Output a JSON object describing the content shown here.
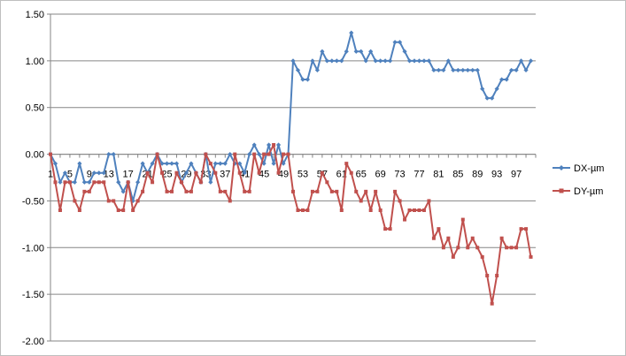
{
  "chart_data": {
    "type": "line",
    "title": "",
    "xlabel": "",
    "ylabel": "",
    "ylim": [
      -2.0,
      1.5
    ],
    "ytick_step": 0.5,
    "x_tick_labels": [
      "1",
      "5",
      "9",
      "13",
      "17",
      "21",
      "25",
      "29",
      "33",
      "37",
      "41",
      "45",
      "49",
      "53",
      "57",
      "61",
      "65",
      "69",
      "73",
      "77",
      "81",
      "85",
      "89",
      "93",
      "97"
    ],
    "grid": "horizontal",
    "legend_position": "right",
    "x": [
      1,
      2,
      3,
      4,
      5,
      6,
      7,
      8,
      9,
      10,
      11,
      12,
      13,
      14,
      15,
      16,
      17,
      18,
      19,
      20,
      21,
      22,
      23,
      24,
      25,
      26,
      27,
      28,
      29,
      30,
      31,
      32,
      33,
      34,
      35,
      36,
      37,
      38,
      39,
      40,
      41,
      42,
      43,
      44,
      45,
      46,
      47,
      48,
      49,
      50,
      51,
      52,
      53,
      54,
      55,
      56,
      57,
      58,
      59,
      60,
      61,
      62,
      63,
      64,
      65,
      66,
      67,
      68,
      69,
      70,
      71,
      72,
      73,
      74,
      75,
      76,
      77,
      78,
      79,
      80,
      81,
      82,
      83,
      84,
      85,
      86,
      87,
      88,
      89,
      90,
      91,
      92,
      93,
      94,
      95,
      96,
      97,
      98,
      99,
      100
    ],
    "series": [
      {
        "name": "DX-µm",
        "color": "#4F81BD",
        "marker": "diamond",
        "values": [
          0,
          -0.1,
          -0.3,
          -0.2,
          -0.3,
          -0.3,
          -0.1,
          -0.3,
          -0.3,
          -0.2,
          -0.2,
          -0.2,
          0,
          0,
          -0.3,
          -0.4,
          -0.3,
          -0.5,
          -0.3,
          -0.1,
          -0.2,
          -0.1,
          0,
          -0.1,
          -0.1,
          -0.1,
          -0.1,
          -0.3,
          -0.2,
          -0.1,
          -0.2,
          -0.3,
          0,
          -0.3,
          -0.1,
          -0.1,
          -0.1,
          0,
          -0.1,
          -0.1,
          -0.2,
          0,
          0.1,
          0,
          -0.1,
          0.1,
          -0.1,
          0.1,
          -0.1,
          0,
          1.0,
          0.9,
          0.8,
          0.8,
          1.0,
          0.9,
          1.1,
          1.0,
          1.0,
          1.0,
          1.0,
          1.1,
          1.3,
          1.1,
          1.1,
          1.0,
          1.1,
          1.0,
          1.0,
          1.0,
          1.0,
          1.2,
          1.2,
          1.1,
          1.0,
          1.0,
          1.0,
          1.0,
          1.0,
          0.9,
          0.9,
          0.9,
          1.0,
          0.9,
          0.9,
          0.9,
          0.9,
          0.9,
          0.9,
          0.7,
          0.6,
          0.6,
          0.7,
          0.8,
          0.8,
          0.9,
          0.9,
          1.0,
          0.9,
          1.0
        ]
      },
      {
        "name": "DY-µm",
        "color": "#C0504D",
        "marker": "square",
        "values": [
          0,
          -0.3,
          -0.6,
          -0.3,
          -0.3,
          -0.5,
          -0.6,
          -0.4,
          -0.4,
          -0.3,
          -0.3,
          -0.3,
          -0.5,
          -0.5,
          -0.6,
          -0.6,
          -0.3,
          -0.6,
          -0.5,
          -0.4,
          -0.2,
          -0.3,
          0,
          -0.2,
          -0.4,
          -0.4,
          -0.2,
          -0.3,
          -0.4,
          -0.4,
          -0.2,
          -0.3,
          0,
          -0.1,
          -0.2,
          -0.4,
          -0.4,
          -0.5,
          0,
          -0.2,
          -0.4,
          -0.4,
          0,
          -0.2,
          0,
          0,
          0.1,
          -0.2,
          0,
          0,
          -0.4,
          -0.6,
          -0.6,
          -0.6,
          -0.4,
          -0.4,
          -0.2,
          -0.3,
          -0.4,
          -0.4,
          -0.6,
          -0.1,
          -0.2,
          -0.4,
          -0.5,
          -0.4,
          -0.6,
          -0.4,
          -0.6,
          -0.8,
          -0.8,
          -0.4,
          -0.5,
          -0.7,
          -0.6,
          -0.6,
          -0.6,
          -0.6,
          -0.5,
          -0.9,
          -0.8,
          -1.0,
          -0.9,
          -1.1,
          -1.0,
          -0.7,
          -1.0,
          -0.9,
          -1.0,
          -1.1,
          -1.3,
          -1.6,
          -1.3,
          -0.9,
          -1.0,
          -1.0,
          -1.0,
          -0.8,
          -0.8,
          -1.1
        ]
      }
    ]
  }
}
